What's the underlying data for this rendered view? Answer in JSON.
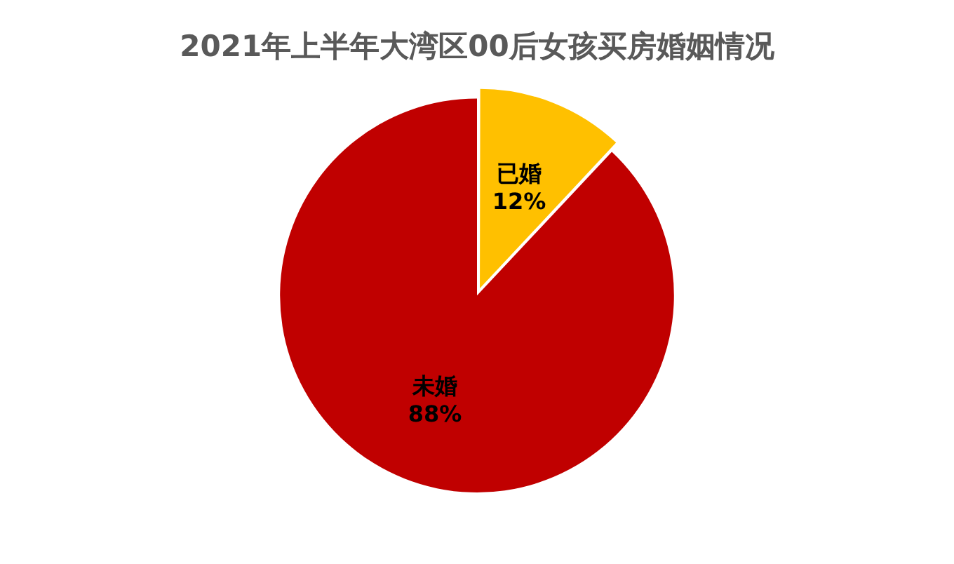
{
  "chart_data": {
    "type": "pie",
    "title": "2021年上半年大湾区00后女孩买房婚姻情况",
    "categories": [
      "已婚",
      "未婚"
    ],
    "values": [
      12,
      88
    ],
    "colors": [
      "#ffc000",
      "#c00000"
    ],
    "value_labels": [
      "12%",
      "88%"
    ],
    "legend": false
  }
}
